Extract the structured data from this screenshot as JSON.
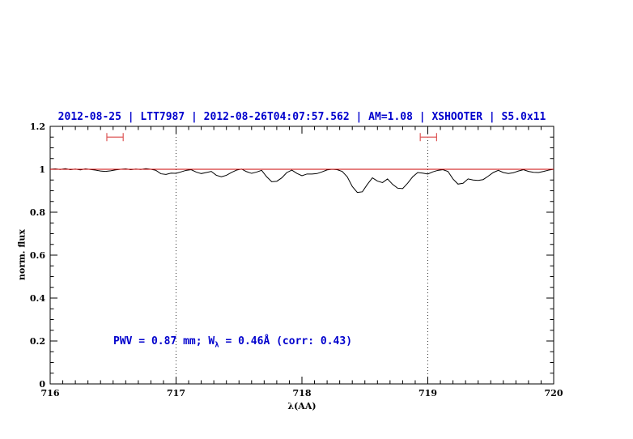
{
  "title": "2012-08-25 | LTT7987 | 2012-08-26T04:07:57.562 | AM=1.08 | XSHOOTER | S5.0x11",
  "annotation": {
    "prefix": "PWV = 0.87 mm; W",
    "sub": "λ",
    "suffix": " = 0.46Å (corr: 0.43)"
  },
  "colors": {
    "title_blue": "#0000cd",
    "annotation_blue": "#0000cd",
    "model_red": "#cc0000",
    "marker_red": "#dd5555",
    "spectrum_black": "#000000",
    "axis_black": "#000000"
  },
  "chart_data": {
    "type": "line",
    "title": "2012-08-25 | LTT7987 | 2012-08-26T04:07:57.562 | AM=1.08 | XSHOOTER | S5.0x11",
    "xlabel": "λ(AA)",
    "ylabel": "norm. flux",
    "xlim": [
      716,
      720
    ],
    "ylim": [
      0,
      1.2
    ],
    "grid": false,
    "x_tick_values": [
      716,
      717,
      718,
      719,
      720
    ],
    "x_tick_labels": [
      "716",
      "717",
      "718",
      "719",
      "720"
    ],
    "x_minor_step": 0.1,
    "y_tick_values": [
      0,
      0.2,
      0.4,
      0.6,
      0.8,
      1,
      1.2
    ],
    "y_tick_labels": [
      "0",
      "0.2",
      "0.4",
      "0.6",
      "0.8",
      "1",
      "1.2"
    ],
    "y_minor_step": 0.05,
    "vlines": [
      717,
      719
    ],
    "range_markers": [
      {
        "x1": 716.45,
        "x2": 716.58,
        "y": 1.15
      },
      {
        "x1": 718.94,
        "x2": 719.07,
        "y": 1.15
      }
    ],
    "series": [
      {
        "name": "observed spectrum",
        "color": "#000000",
        "x_start": 716.0,
        "x_step": 0.04,
        "flux": [
          1.0,
          1.002,
          0.999,
          1.003,
          0.998,
          1.001,
          0.997,
          1.002,
          0.999,
          0.996,
          0.992,
          0.99,
          0.993,
          0.997,
          1.0,
          1.002,
          0.998,
          1.001,
          0.999,
          1.003,
          1.0,
          0.995,
          0.979,
          0.976,
          0.982,
          0.981,
          0.988,
          0.995,
          0.998,
          0.987,
          0.98,
          0.985,
          0.99,
          0.972,
          0.965,
          0.972,
          0.985,
          0.996,
          1.001,
          0.989,
          0.981,
          0.987,
          0.995,
          0.965,
          0.942,
          0.944,
          0.96,
          0.985,
          0.996,
          0.981,
          0.97,
          0.978,
          0.978,
          0.98,
          0.988,
          0.997,
          1.0,
          0.998,
          0.99,
          0.965,
          0.92,
          0.892,
          0.895,
          0.93,
          0.96,
          0.945,
          0.938,
          0.955,
          0.93,
          0.912,
          0.91,
          0.935,
          0.965,
          0.985,
          0.982,
          0.978,
          0.988,
          0.995,
          0.998,
          0.99,
          0.955,
          0.931,
          0.935,
          0.955,
          0.95,
          0.948,
          0.952,
          0.968,
          0.985,
          0.995,
          0.985,
          0.98,
          0.984,
          0.992,
          0.998,
          0.99,
          0.986,
          0.985,
          0.99,
          0.996,
          1.0
        ]
      },
      {
        "name": "continuum model",
        "color": "#cc0000",
        "x_start": 716.0,
        "x_step": 4.0,
        "flux": [
          1.0,
          1.0
        ]
      }
    ]
  }
}
